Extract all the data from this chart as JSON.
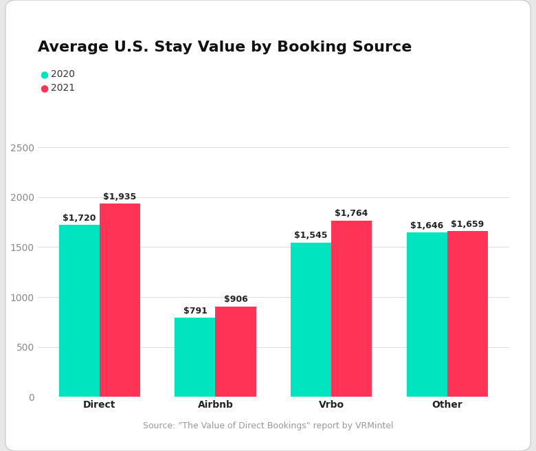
{
  "title": "Average U.S. Stay Value by Booking Source",
  "categories": [
    "Direct",
    "Airbnb",
    "Vrbo",
    "Other"
  ],
  "values_2020": [
    1720,
    791,
    1545,
    1646
  ],
  "values_2021": [
    1935,
    906,
    1764,
    1659
  ],
  "labels_2020": [
    "$1,720",
    "$791",
    "$1,545",
    "$1,646"
  ],
  "labels_2021": [
    "$1,935",
    "$906",
    "$1,764",
    "$1,659"
  ],
  "color_2020": "#00E5BF",
  "color_2021": "#FF3355",
  "ylim": [
    0,
    2800
  ],
  "yticks": [
    0,
    500,
    1000,
    1500,
    2000,
    2500
  ],
  "bar_width": 0.35,
  "legend_2020": "2020",
  "legend_2021": "2021",
  "source_text": "Source: \"The Value of Direct Bookings\" report by VRMintel",
  "outer_bg_color": "#e8e8e8",
  "card_bg_color": "#ffffff",
  "title_fontsize": 16,
  "label_fontsize": 9,
  "tick_fontsize": 10,
  "legend_fontsize": 10,
  "source_fontsize": 9,
  "grid_color": "#dddddd",
  "tick_color": "#888888",
  "xtick_color": "#222222",
  "label_color": "#222222",
  "source_color": "#999999"
}
